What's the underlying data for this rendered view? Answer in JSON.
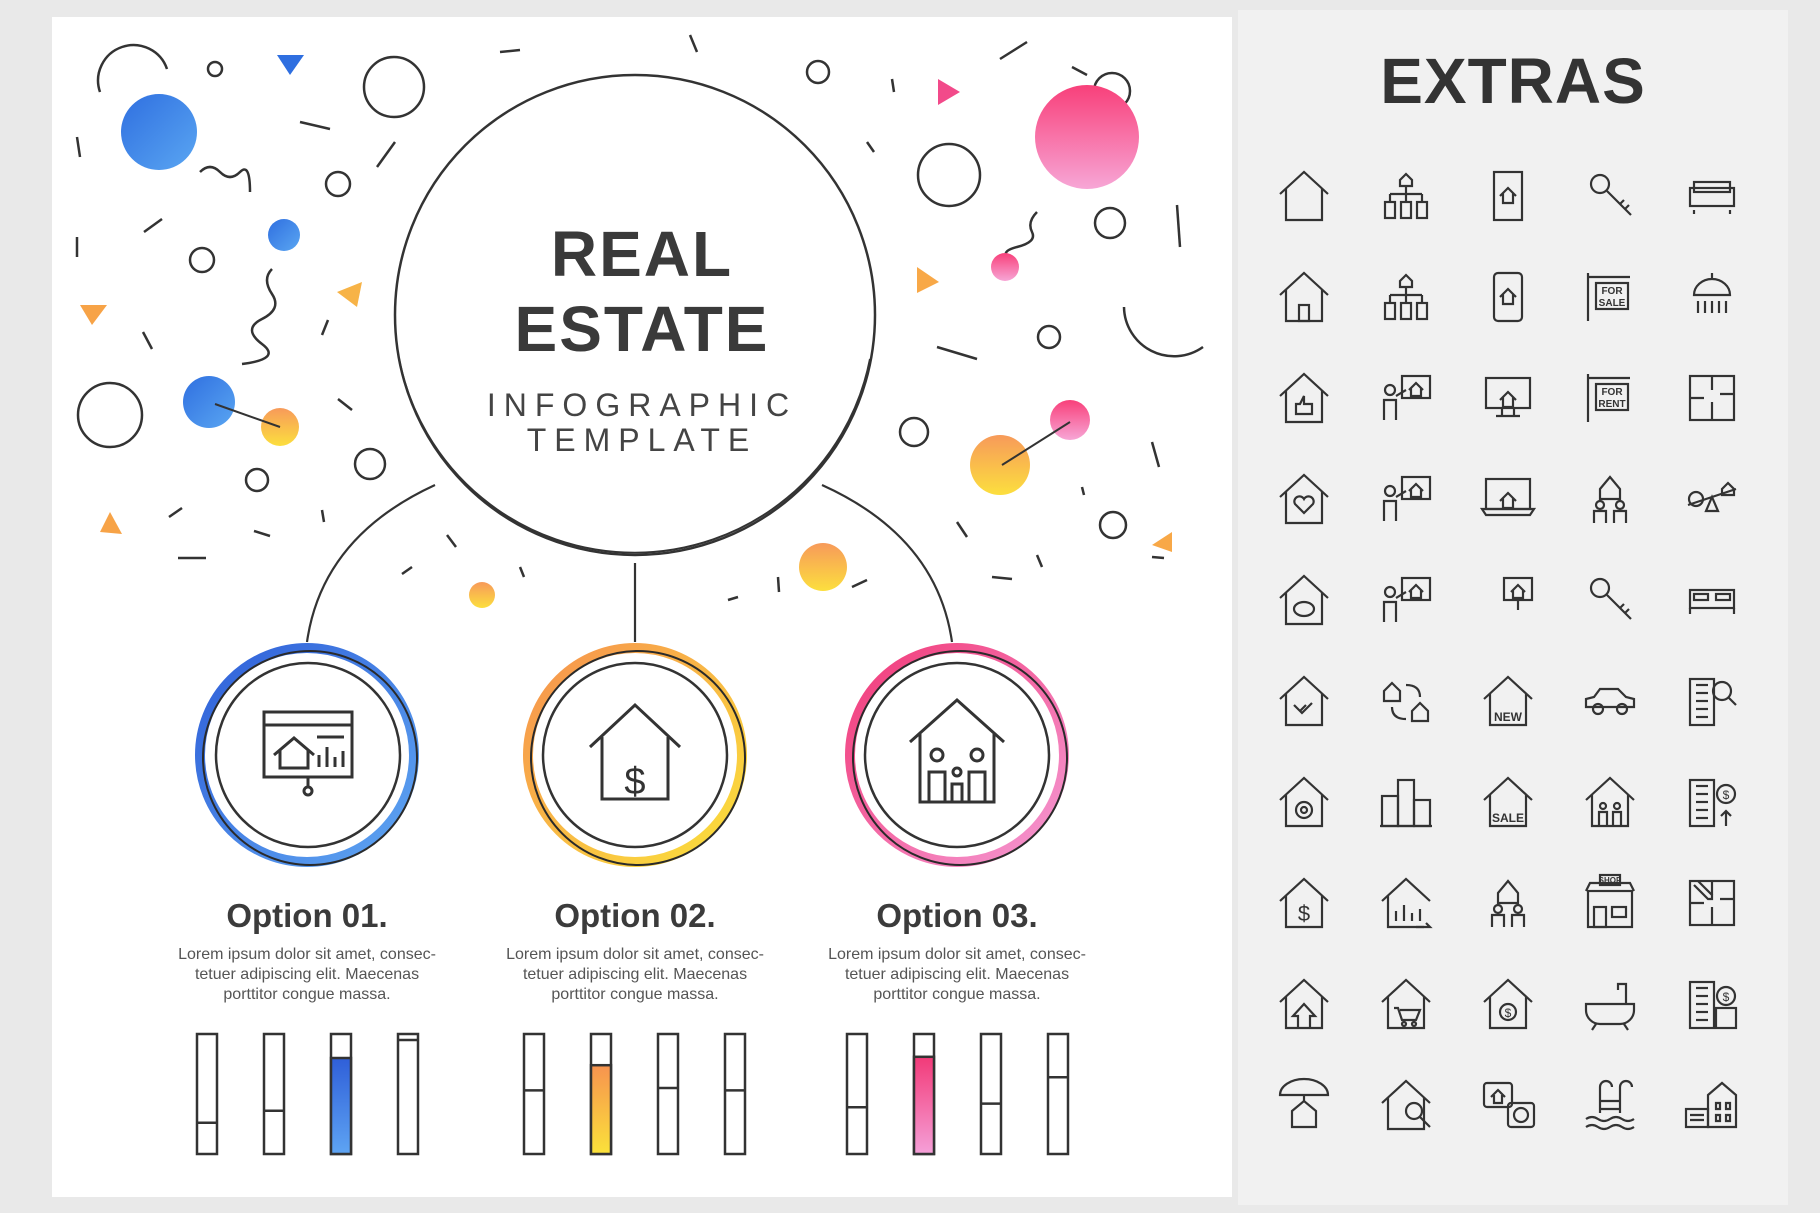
{
  "header": {
    "title_line1": "REAL",
    "title_line2": "ESTATE",
    "subtitle_line1": "INFOGRAPHIC",
    "subtitle_line2": "TEMPLATE"
  },
  "options": [
    {
      "title": "Option 01.",
      "text_line1": "Lorem ipsum dolor sit amet, consec-",
      "text_line2": "tetuer adipiscing elit. Maecenas",
      "text_line3": "porttitor congue massa.",
      "color_top": "#2f6fe0",
      "color_bottom": "#4f95f0",
      "icon": "presentation-house-chart-icon",
      "bars": [
        0.26,
        0.36,
        0.8,
        0.95
      ],
      "highlight_bar": 2
    },
    {
      "title": "Option 02.",
      "text_line1": "Lorem ipsum dolor sit amet, consec-",
      "text_line2": "tetuer adipiscing elit. Maecenas",
      "text_line3": "porttitor congue massa.",
      "color_top": "#f6a04a",
      "color_bottom": "#fbd740",
      "icon": "house-dollar-icon",
      "bars": [
        0.53,
        0.74,
        0.55,
        0.53
      ],
      "highlight_bar": 1
    },
    {
      "title": "Option 03.",
      "text_line1": "Lorem ipsum dolor sit amet, consec-",
      "text_line2": "tetuer adipiscing elit. Maecenas",
      "text_line3": "porttitor congue massa.",
      "color_top": "#f4407e",
      "color_bottom": "#f48fcf",
      "icon": "house-family-icon",
      "bars": [
        0.39,
        0.81,
        0.42,
        0.64
      ],
      "highlight_bar": 1
    }
  ],
  "extras": {
    "title": "EXTRAS",
    "icons": [
      "house-outline-icon",
      "house-hierarchy-icon",
      "house-document-icon",
      "key-icon",
      "sofa-icon",
      "house-door-icon",
      "organization-houses-icon",
      "mobile-house-icon",
      "for-sale-sign-icon",
      "shower-icon",
      "house-thumbs-up-icon",
      "agent-presentation-icon",
      "monitor-house-icon",
      "for-rent-sign-icon",
      "floor-plan-icon",
      "house-heart-icon",
      "agent-board-icon",
      "laptop-house-icon",
      "couple-house-icon",
      "seesaw-money-house-icon",
      "house-piggy-bank-icon",
      "audience-presentation-icon",
      "projector-house-icon",
      "key-house-icon",
      "bed-icon",
      "house-handshake-icon",
      "house-exchange-icon",
      "house-new-icon",
      "car-icon",
      "building-search-icon",
      "house-gear-icon",
      "city-buildings-icon",
      "house-sale-icon",
      "house-family-icon",
      "building-money-growth-icon",
      "house-dollar-icon",
      "house-chart-icon",
      "house-people-icon",
      "shop-icon",
      "floor-plan-pencil-icon",
      "house-arrow-icon",
      "house-cart-icon",
      "house-coin-icon",
      "bathtub-icon",
      "building-coin-icon",
      "umbrella-house-icon",
      "house-magnifier-icon",
      "chat-house-money-icon",
      "pool-ladder-icon",
      "house-garage-icon"
    ],
    "icon_texts": {
      "for_sale_1": "FOR",
      "for_sale_2": "SALE",
      "for_rent_1": "FOR",
      "for_rent_2": "RENT",
      "new": "NEW",
      "sale": "SALE",
      "shop": "SHOP"
    }
  }
}
